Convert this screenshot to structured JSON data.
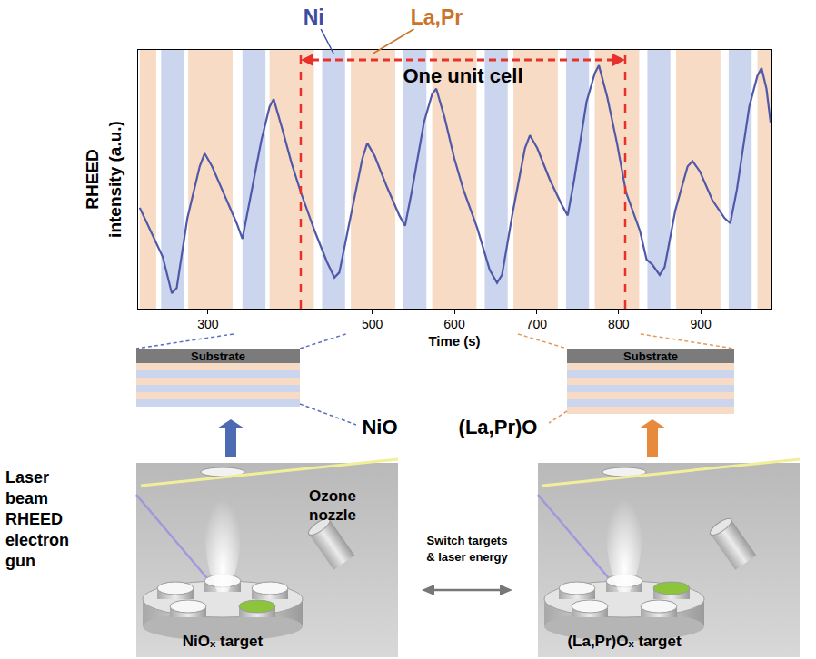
{
  "chart_data": {
    "type": "line",
    "x_label": "Time (s)",
    "y_label": "RHEED intensity (a.u.)",
    "x": [
      217,
      230,
      245,
      256,
      262,
      275,
      290,
      296,
      305,
      320,
      335,
      342,
      350,
      365,
      375,
      380,
      390,
      402,
      413,
      430,
      445,
      454,
      460,
      473,
      488,
      494,
      503,
      518,
      533,
      540,
      548,
      563,
      573,
      578,
      588,
      600,
      611,
      628,
      643,
      652,
      658,
      671,
      686,
      692,
      701,
      716,
      731,
      738,
      746,
      761,
      771,
      776,
      786,
      798,
      809,
      826,
      834,
      841,
      850,
      856,
      869,
      884,
      890,
      899,
      914,
      929,
      936,
      944,
      959,
      969,
      974,
      980,
      985
    ],
    "series": [
      {
        "color": "#5058a8",
        "values": [
          0.39,
          0.3,
          0.2,
          0.06,
          0.08,
          0.35,
          0.55,
          0.6,
          0.55,
          0.44,
          0.33,
          0.27,
          0.4,
          0.65,
          0.78,
          0.81,
          0.7,
          0.56,
          0.45,
          0.3,
          0.18,
          0.12,
          0.14,
          0.35,
          0.58,
          0.64,
          0.59,
          0.47,
          0.36,
          0.32,
          0.45,
          0.72,
          0.83,
          0.85,
          0.74,
          0.58,
          0.46,
          0.31,
          0.15,
          0.1,
          0.13,
          0.37,
          0.62,
          0.67,
          0.62,
          0.5,
          0.4,
          0.36,
          0.5,
          0.8,
          0.91,
          0.94,
          0.82,
          0.64,
          0.45,
          0.3,
          0.19,
          0.17,
          0.13,
          0.16,
          0.38,
          0.55,
          0.57,
          0.53,
          0.42,
          0.35,
          0.33,
          0.46,
          0.78,
          0.9,
          0.93,
          0.85,
          0.72
        ]
      }
    ],
    "xlim": [
      215,
      985
    ],
    "ylim": [
      0,
      1
    ],
    "xticks": [
      300,
      500,
      600,
      700,
      800,
      900
    ],
    "tick_labels": "x",
    "grid": false,
    "bands": [
      {
        "name": "Ni",
        "color": "#cbd6ee",
        "spans": [
          [
            243,
            271
          ],
          [
            342,
            370
          ],
          [
            439,
            467
          ],
          [
            538,
            566
          ],
          [
            637,
            665
          ],
          [
            736,
            764
          ],
          [
            835,
            863
          ],
          [
            934,
            962
          ]
        ]
      },
      {
        "name": "La,Pr",
        "color": "#f7dbc5",
        "spans": [
          [
            217,
            237
          ],
          [
            276,
            330
          ],
          [
            375,
            429
          ],
          [
            474,
            528
          ],
          [
            573,
            627
          ],
          [
            672,
            726
          ],
          [
            771,
            825
          ],
          [
            870,
            924
          ],
          [
            969,
            985
          ]
        ]
      }
    ],
    "unit_cell": {
      "label": "One unit cell",
      "start": 413,
      "end": 808,
      "color": "#e8312a"
    }
  },
  "diagram": {
    "stacks": [
      {
        "substrate": "Substrate",
        "layers": [
          "La,Pr",
          "Ni",
          "La,Pr",
          "Ni",
          "La,Pr",
          "Ni"
        ]
      },
      {
        "substrate": "Substrate",
        "layers": [
          "La,Pr",
          "Ni",
          "La,Pr",
          "Ni",
          "La,Pr",
          "Ni",
          "La,Pr"
        ]
      }
    ],
    "layer_labels": [
      "NiO",
      "(La,Pr)O"
    ],
    "chambers": [
      {
        "target": "NiOₓ target"
      },
      {
        "target": "(La,Pr)Oₓ target"
      }
    ],
    "beam_label": "Laser beam RHEED electron gun",
    "nozzle_label": "Ozone nozzle",
    "switch_label": "Switch targets & laser energy"
  }
}
